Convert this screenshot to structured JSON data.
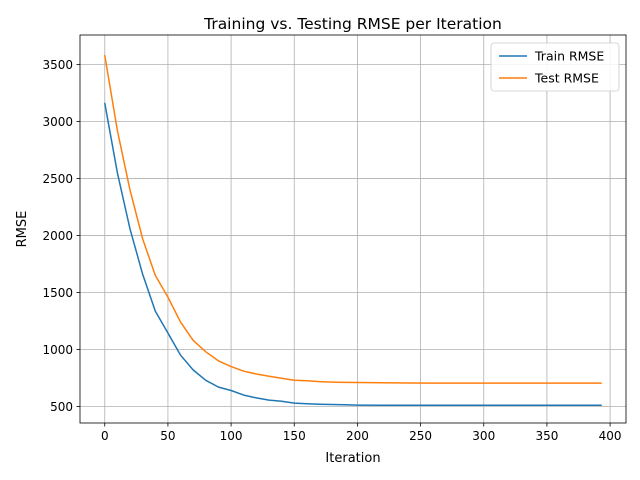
{
  "chart_data": {
    "type": "line",
    "title": "Training vs. Testing RMSE per Iteration",
    "xlabel": "Iteration",
    "ylabel": "RMSE",
    "xlim": [
      -19.6,
      412.6
    ],
    "ylim": [
      355,
      3760
    ],
    "xticks": [
      0,
      50,
      100,
      150,
      200,
      250,
      300,
      350,
      400
    ],
    "yticks": [
      500,
      1000,
      1500,
      2000,
      2500,
      3000,
      3500
    ],
    "grid": true,
    "legend_position": "top-right",
    "x": [
      0,
      10,
      20,
      30,
      40,
      50,
      60,
      70,
      80,
      90,
      100,
      110,
      120,
      130,
      140,
      150,
      160,
      170,
      180,
      190,
      200,
      220,
      240,
      260,
      280,
      300,
      320,
      340,
      360,
      380,
      393
    ],
    "series": [
      {
        "name": "Train RMSE",
        "color": "#1f77b4",
        "values": [
          3160,
          2550,
          2058,
          1659,
          1337,
          1145,
          950,
          820,
          730,
          670,
          640,
          600,
          575,
          556,
          545,
          530,
          524,
          520,
          517,
          515,
          512,
          511,
          510,
          510,
          510,
          510,
          510,
          510,
          510,
          510,
          510
        ]
      },
      {
        "name": "Test RMSE",
        "color": "#ff7f0e",
        "values": [
          3580,
          2920,
          2400,
          1970,
          1650,
          1460,
          1240,
          1080,
          980,
          900,
          850,
          810,
          785,
          765,
          748,
          731,
          725,
          718,
          714,
          711,
          710,
          708,
          706,
          705,
          705,
          705,
          705,
          705,
          705,
          705,
          705
        ]
      }
    ]
  }
}
